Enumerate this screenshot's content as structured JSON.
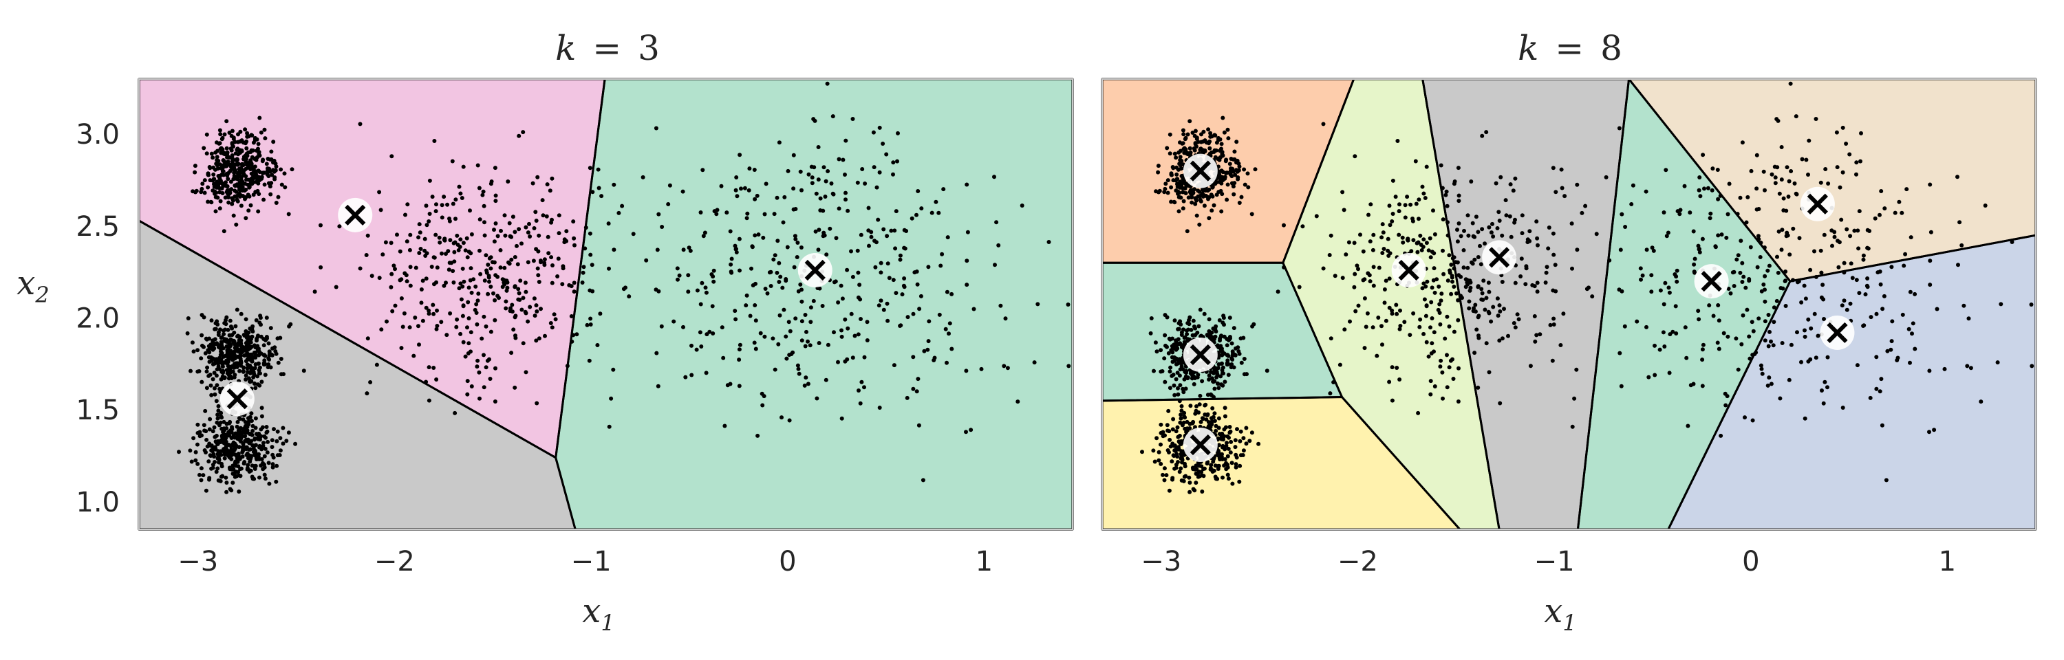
{
  "figure": {
    "description": "K-Means Voronoi decision boundaries for k=3 and k=8"
  },
  "chart_data": [
    {
      "type": "scatter",
      "title_parts": {
        "k": "k",
        "eq": "=",
        "n": "3"
      },
      "xlabel": {
        "base": "x",
        "sub": "1"
      },
      "ylabel": {
        "base": "x",
        "sub": "2"
      },
      "xlim": [
        -3.3,
        1.45
      ],
      "ylim": [
        0.85,
        3.3
      ],
      "xticks": [
        -3,
        -2,
        -1,
        0,
        1
      ],
      "xtick_labels": [
        "−3",
        "−2",
        "−1",
        "0",
        "1"
      ],
      "yticks": [
        1.0,
        1.5,
        2.0,
        2.5,
        3.0
      ],
      "ytick_labels": [
        "1.0",
        "1.5",
        "2.0",
        "2.5",
        "3.0"
      ],
      "grid": false,
      "regions": [
        {
          "name": "region-1",
          "color": "#f2c5e2",
          "vertices": [
            [
              -3.3,
              3.3
            ],
            [
              -0.93,
              3.3
            ],
            [
              -1.18,
              1.24
            ],
            [
              -3.3,
              2.53
            ]
          ]
        },
        {
          "name": "region-2",
          "color": "#c9c9c9",
          "vertices": [
            [
              -3.3,
              2.53
            ],
            [
              -1.18,
              1.24
            ],
            [
              -1.08,
              0.85
            ],
            [
              -3.3,
              0.85
            ]
          ]
        },
        {
          "name": "region-3",
          "color": "#b3e2cd",
          "vertices": [
            [
              -0.93,
              3.3
            ],
            [
              1.45,
              3.3
            ],
            [
              1.45,
              0.85
            ],
            [
              -1.08,
              0.85
            ],
            [
              -1.18,
              1.24
            ]
          ]
        }
      ],
      "centroids": [
        [
          -2.2,
          2.56
        ],
        [
          0.14,
          2.26
        ],
        [
          -2.8,
          1.56
        ]
      ],
      "clusters": [
        {
          "center": [
            -2.8,
            2.8
          ],
          "std": [
            0.1,
            0.1
          ],
          "n": 400
        },
        {
          "center": [
            -2.8,
            1.8
          ],
          "std": [
            0.1,
            0.1
          ],
          "n": 400
        },
        {
          "center": [
            -2.8,
            1.3
          ],
          "std": [
            0.1,
            0.1
          ],
          "n": 400
        },
        {
          "center": [
            -1.55,
            2.25
          ],
          "std": [
            0.3,
            0.3
          ],
          "n": 400
        },
        {
          "center": [
            0.15,
            2.25
          ],
          "std": [
            0.45,
            0.38
          ],
          "n": 400
        }
      ]
    },
    {
      "type": "scatter",
      "title_parts": {
        "k": "k",
        "eq": "=",
        "n": "8"
      },
      "xlabel": {
        "base": "x",
        "sub": "1"
      },
      "ylabel": {
        "base": "",
        "sub": ""
      },
      "xlim": [
        -3.3,
        1.45
      ],
      "ylim": [
        0.85,
        3.3
      ],
      "xticks": [
        -3,
        -2,
        -1,
        0,
        1
      ],
      "xtick_labels": [
        "−3",
        "−2",
        "−1",
        "0",
        "1"
      ],
      "yticks": [],
      "ytick_labels": [],
      "grid": false,
      "regions": [
        {
          "name": "region-orange",
          "color": "#fdcdac",
          "vertices": [
            [
              -3.3,
              3.3
            ],
            [
              -2.02,
              3.3
            ],
            [
              -2.38,
              2.3
            ],
            [
              -3.3,
              2.3
            ]
          ]
        },
        {
          "name": "region-green-left",
          "color": "#b3e2cd",
          "vertices": [
            [
              -3.3,
              2.3
            ],
            [
              -2.38,
              2.3
            ],
            [
              -2.08,
              1.57
            ],
            [
              -3.3,
              1.55
            ]
          ]
        },
        {
          "name": "region-yellow",
          "color": "#fff2ae",
          "vertices": [
            [
              -3.3,
              1.55
            ],
            [
              -2.08,
              1.57
            ],
            [
              -1.48,
              0.85
            ],
            [
              -3.3,
              0.85
            ]
          ]
        },
        {
          "name": "region-lime",
          "color": "#e6f5c9",
          "vertices": [
            [
              -2.02,
              3.3
            ],
            [
              -1.67,
              3.3
            ],
            [
              -1.28,
              0.85
            ],
            [
              -1.48,
              0.85
            ],
            [
              -2.08,
              1.57
            ],
            [
              -2.38,
              2.3
            ]
          ]
        },
        {
          "name": "region-gray",
          "color": "#c9c9c9",
          "vertices": [
            [
              -1.67,
              3.3
            ],
            [
              -0.62,
              3.3
            ],
            [
              -0.88,
              0.85
            ],
            [
              -1.28,
              0.85
            ]
          ]
        },
        {
          "name": "region-green-mid",
          "color": "#b3e2cd",
          "vertices": [
            [
              -0.62,
              3.3
            ],
            [
              0.2,
              2.2
            ],
            [
              -0.42,
              0.85
            ],
            [
              -0.88,
              0.85
            ]
          ]
        },
        {
          "name": "region-beige",
          "color": "#f1e2cc",
          "vertices": [
            [
              -0.62,
              3.3
            ],
            [
              1.45,
              3.3
            ],
            [
              1.45,
              2.45
            ],
            [
              0.2,
              2.2
            ]
          ]
        },
        {
          "name": "region-blue",
          "color": "#cbd5e8",
          "vertices": [
            [
              0.2,
              2.2
            ],
            [
              1.45,
              2.45
            ],
            [
              1.45,
              0.85
            ],
            [
              -0.42,
              0.85
            ]
          ]
        }
      ],
      "centroids": [
        [
          -2.8,
          2.8
        ],
        [
          -2.8,
          1.8
        ],
        [
          -2.8,
          1.31
        ],
        [
          -1.74,
          2.26
        ],
        [
          -1.28,
          2.33
        ],
        [
          -0.2,
          2.2
        ],
        [
          0.34,
          2.62
        ],
        [
          0.44,
          1.92
        ]
      ],
      "clusters": [
        {
          "center": [
            -2.8,
            2.8
          ],
          "std": [
            0.1,
            0.1
          ],
          "n": 400
        },
        {
          "center": [
            -2.8,
            1.8
          ],
          "std": [
            0.1,
            0.1
          ],
          "n": 400
        },
        {
          "center": [
            -2.8,
            1.3
          ],
          "std": [
            0.1,
            0.1
          ],
          "n": 400
        },
        {
          "center": [
            -1.55,
            2.25
          ],
          "std": [
            0.3,
            0.3
          ],
          "n": 400
        },
        {
          "center": [
            0.15,
            2.25
          ],
          "std": [
            0.45,
            0.38
          ],
          "n": 400
        }
      ]
    }
  ],
  "colors": {
    "point": "#000000",
    "boundary": "#000000",
    "centroid_fill": "#ffffff",
    "centroid_marker": "#000000",
    "frame": "#cccccc",
    "text": "#262626"
  }
}
